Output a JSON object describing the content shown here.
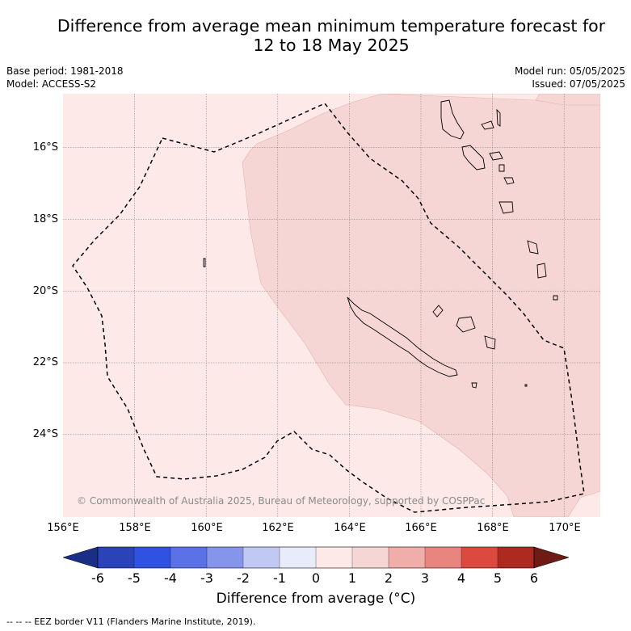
{
  "title": {
    "line1": "Difference from average mean minimum temperature forecast for",
    "line2": "12 to 18 May 2025"
  },
  "meta": {
    "base_period": "Base period: 1981-2018",
    "model": "Model: ACCESS-S2",
    "model_run": "Model run: 05/05/2025",
    "issued": "Issued: 07/05/2025"
  },
  "map": {
    "lon_labels": [
      "156°E",
      "158°E",
      "160°E",
      "162°E",
      "164°E",
      "166°E",
      "168°E",
      "170°E"
    ],
    "lat_labels": [
      "16°S",
      "18°S",
      "20°S",
      "22°S",
      "24°S"
    ],
    "copyright": "© Commonwealth of Australia 2025, Bureau of Meteorology, supported by COSPPac",
    "colors": {
      "anomaly_0_to_1": "#fdeae8",
      "anomaly_1_to_2": "#f6d6d4",
      "eez_border": "#000000",
      "gridline": "#777777"
    }
  },
  "colorbar": {
    "ticks": [
      "-6",
      "-5",
      "-4",
      "-3",
      "-2",
      "-1",
      "0",
      "1",
      "2",
      "3",
      "4",
      "5",
      "6"
    ],
    "colors": [
      "#1b2e86",
      "#2a43b9",
      "#3052e2",
      "#5a72e6",
      "#8595ec",
      "#c2c8f4",
      "#e8ecfa",
      "#fdeae8",
      "#f6d6d4",
      "#efaea9",
      "#e8857e",
      "#dc4a3f",
      "#ac2a20",
      "#6e1b16"
    ],
    "title": "Difference from average (°C)"
  },
  "footer": "--  --  -- EEZ border V11 (Flanders Marine Institute, 2019)."
}
